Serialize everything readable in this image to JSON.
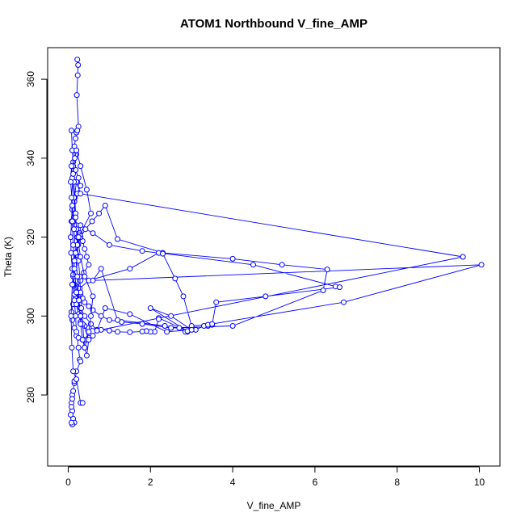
{
  "chart_data": {
    "type": "scatter",
    "title": "ATOM1 Northbound V_fine_AMP",
    "xlabel": "V_fine_AMP",
    "ylabel": "Theta (K)",
    "xlim": [
      -0.5,
      10.5
    ],
    "ylim": [
      262,
      368
    ],
    "xticks": [
      0,
      2,
      4,
      6,
      8,
      10
    ],
    "yticks": [
      280,
      300,
      320,
      340,
      360
    ],
    "grid": false,
    "legend": "none",
    "connected": true,
    "marker": "open-circle",
    "color": "#0000ff",
    "series": [
      {
        "x": [
          0.22,
          0.24,
          0.23,
          0.21,
          0.25,
          0.2,
          0.22,
          0.18,
          0.15,
          0.2,
          0.12,
          0.18,
          0.25,
          0.3,
          0.22,
          0.15,
          0.1,
          0.14,
          0.2,
          0.28,
          0.35,
          0.4,
          0.45,
          0.5,
          0.38,
          0.3,
          0.22,
          0.18,
          0.12,
          0.08,
          0.1,
          0.15,
          0.2,
          0.25,
          0.35,
          0.5,
          0.6,
          0.7,
          0.55,
          0.4,
          0.3,
          0.25,
          0.2,
          0.15,
          0.12,
          0.1,
          0.14,
          0.18,
          0.24,
          0.3,
          0.42,
          0.58,
          0.75,
          0.9,
          1.2,
          2.3,
          4.0,
          5.2,
          6.3,
          6.2,
          4.0,
          2.5,
          1.8,
          1.3,
          1.0,
          0.8,
          0.6,
          0.5,
          0.4,
          0.35,
          0.3,
          0.28,
          0.5,
          1.5,
          2.2,
          4.5,
          6.5,
          6.6,
          4.8,
          3.6,
          3.5,
          3.4,
          3.3,
          3.1,
          2.9,
          2.9,
          2.2,
          2.2,
          2.1,
          2.0,
          1.9,
          1.8,
          1.5,
          1.2,
          1.0,
          0.8,
          0.5,
          0.4,
          0.3,
          0.25,
          0.2,
          0.15,
          0.1,
          0.12,
          0.16,
          0.2,
          0.24,
          0.28,
          0.3,
          0.6,
          1.0,
          1.8,
          2.3,
          2.6,
          2.8,
          3.0,
          3.4,
          3.5,
          6.7,
          10.05,
          0.6,
          0.8,
          1.2,
          2.35,
          2.7,
          2.85,
          2.9,
          2.0,
          2.5,
          3.0,
          2.4,
          1.5,
          0.9,
          0.7,
          9.6,
          0.3,
          0.2,
          0.15,
          0.1,
          0.08,
          0.06,
          0.07,
          0.1,
          0.12,
          0.15,
          0.18,
          0.2,
          0.25,
          0.28,
          0.3,
          0.2,
          0.15,
          0.1,
          0.08,
          0.1,
          0.12,
          0.15,
          0.1,
          0.08,
          0.06,
          0.08,
          0.1,
          0.12,
          0.15
        ],
        "y": [
          365.0,
          363.6,
          361.0,
          356.0,
          348.0,
          346.5,
          347.0,
          345.0,
          343.0,
          341.0,
          339.0,
          337.0,
          335.0,
          333.0,
          331.0,
          329.0,
          327.0,
          325.0,
          323.0,
          321.0,
          319.0,
          317.0,
          315.0,
          313.0,
          311.0,
          309.0,
          307.0,
          305.0,
          303.0,
          301.0,
          299.0,
          297.0,
          295.0,
          294.5,
          294.0,
          294.5,
          295.0,
          296.5,
          298.0,
          300.0,
          302.0,
          304.0,
          306.0,
          308.0,
          310.0,
          312.0,
          314.0,
          316.0,
          318.0,
          320.0,
          322.0,
          324.0,
          326.0,
          328.0,
          319.5,
          316.0,
          314.5,
          313.0,
          311.8,
          306.5,
          297.5,
          297.0,
          298.0,
          298.5,
          299.0,
          300.0,
          301.5,
          302.5,
          303.5,
          304.5,
          305.5,
          307.0,
          309.0,
          312.0,
          316.0,
          313.0,
          307.5,
          307.3,
          305.0,
          303.5,
          297.8,
          297.5,
          297.5,
          296.5,
          296.0,
          296.2,
          299.5,
          299.2,
          296.0,
          296.0,
          296.2,
          296.1,
          295.9,
          296.0,
          296.3,
          296.5,
          297.0,
          297.5,
          298.5,
          300.5,
          303.0,
          305.5,
          308.0,
          310.5,
          313.0,
          315.5,
          318.0,
          320.5,
          323.0,
          321.0,
          318.0,
          316.5,
          315.8,
          309.5,
          305.0,
          297.5,
          297.8,
          298.0,
          303.5,
          313.0,
          309.0,
          312.0,
          299.0,
          297.5,
          297.0,
          296.0,
          296.2,
          302.0,
          300.0,
          296.5,
          296.0,
          300.5,
          302.0,
          296.3,
          315.0,
          331.0,
          334.0,
          330.0,
          328.0,
          324.0,
          320.0,
          316.0,
          312.0,
          308.0,
          304.0,
          300.0,
          296.0,
          292.0,
          289.0,
          288.5,
          286.0,
          283.0,
          280.0,
          278.0,
          276.0,
          274.0,
          273.0,
          272.5,
          273.0,
          275.0,
          277.0,
          279.0,
          281.0,
          283.5
        ]
      },
      {
        "x": [
          0.08,
          0.1,
          0.12,
          0.14,
          0.16,
          0.18,
          0.2,
          0.22,
          0.25,
          0.28,
          0.3,
          0.32,
          0.35,
          0.38,
          0.4,
          0.45,
          0.5,
          0.55,
          0.6,
          0.4,
          0.3,
          0.22,
          0.18,
          0.14,
          0.1,
          0.08,
          0.06,
          0.1,
          0.14,
          0.18,
          0.22,
          0.26,
          0.3,
          0.35,
          0.4,
          0.45,
          0.5,
          0.3,
          0.2,
          0.15,
          0.12,
          0.1,
          0.08,
          0.12,
          0.16,
          0.2,
          0.3,
          0.45,
          0.55,
          0.25,
          0.15,
          0.1,
          0.07,
          0.09,
          0.12,
          0.2,
          0.3,
          0.35
        ],
        "y": [
          347.0,
          342.0,
          338.0,
          334.0,
          330.0,
          326.0,
          322.0,
          318.0,
          314.0,
          310.0,
          306.0,
          302.0,
          298.0,
          294.0,
          292.0,
          294.0,
          296.0,
          300.0,
          305.0,
          310.0,
          315.0,
          320.0,
          325.0,
          330.0,
          335.0,
          338.0,
          334.0,
          328.0,
          322.0,
          316.0,
          310.0,
          304.0,
          298.0,
          294.0,
          292.0,
          290.0,
          294.0,
          300.0,
          306.0,
          312.0,
          318.0,
          324.0,
          330.0,
          336.0,
          340.0,
          342.0,
          338.0,
          332.0,
          326.0,
          320.0,
          314.0,
          308.0,
          300.0,
          292.0,
          286.0,
          284.0,
          278.0,
          278.0
        ]
      }
    ]
  }
}
